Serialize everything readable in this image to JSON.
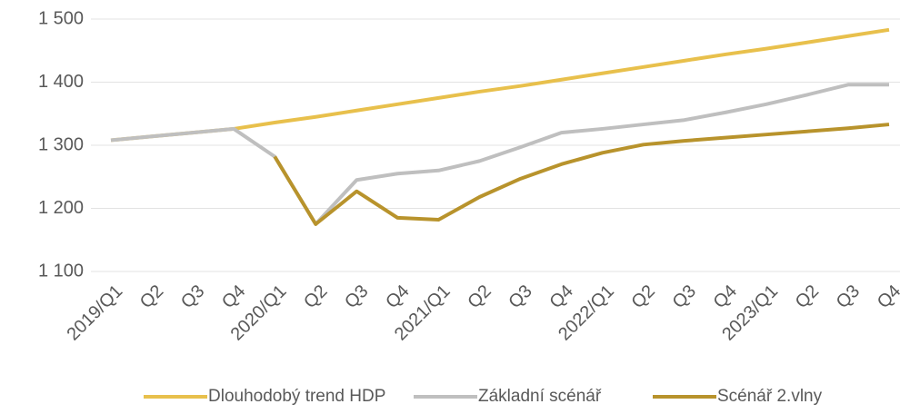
{
  "chart_data": {
    "type": "line",
    "categories": [
      "2019/Q1",
      "Q2",
      "Q3",
      "Q4",
      "2020/Q1",
      "Q2",
      "Q3",
      "Q4",
      "2021/Q1",
      "Q2",
      "Q3",
      "Q4",
      "2022/Q1",
      "Q2",
      "Q3",
      "Q4",
      "2023/Q1",
      "Q2",
      "Q3",
      "Q4"
    ],
    "series": [
      {
        "name": "Dlouhodobý trend HDP",
        "color": "#e8c04c",
        "values": [
          1308,
          1314,
          1320,
          1326,
          1336,
          1345,
          1355,
          1365,
          1375,
          1385,
          1394,
          1404,
          1414,
          1424,
          1434,
          1444,
          1453,
          1463,
          1473,
          1483
        ]
      },
      {
        "name": "Základní scénář",
        "color": "#bfbfbf",
        "values": [
          1308,
          1314,
          1320,
          1326,
          1282,
          1175,
          1245,
          1255,
          1260,
          1275,
          1297,
          1320,
          1326,
          1333,
          1340,
          1352,
          1365,
          1380,
          1396,
          1396
        ]
      },
      {
        "name": "Scénář 2.vlny",
        "color": "#b8932c",
        "values": [
          null,
          null,
          null,
          null,
          1282,
          1175,
          1227,
          1185,
          1182,
          1218,
          1247,
          1270,
          1288,
          1301,
          1307,
          1312,
          1317,
          1322,
          1327,
          1333
        ]
      }
    ],
    "ylim": [
      1100,
      1500
    ],
    "yticks": [
      {
        "value": 1100,
        "label": "1 100"
      },
      {
        "value": 1200,
        "label": "1 200"
      },
      {
        "value": 1300,
        "label": "1 300"
      },
      {
        "value": 1400,
        "label": "1 400"
      },
      {
        "value": 1500,
        "label": "1 500"
      }
    ],
    "grid": true,
    "legend": "bottom"
  }
}
